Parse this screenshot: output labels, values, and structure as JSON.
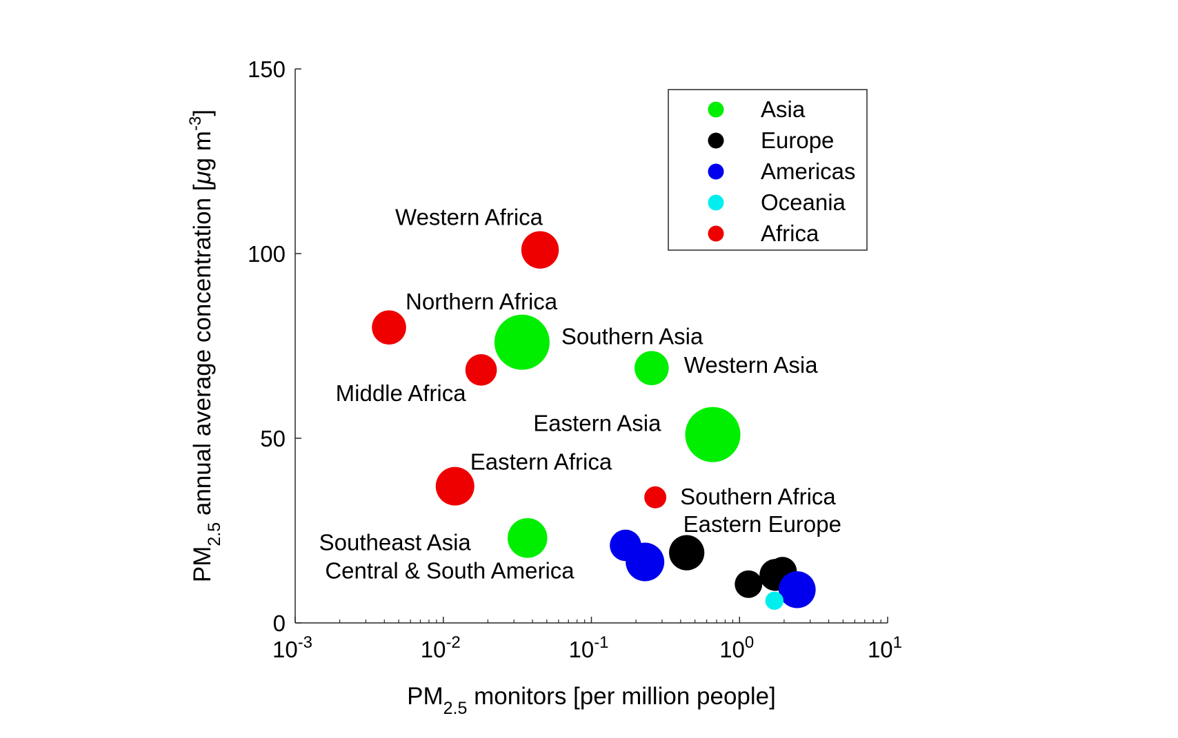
{
  "chart_data": {
    "type": "scatter",
    "title": "",
    "xlabel": {
      "main": "PM",
      "sub": "2.5",
      "rest": " monitors [per million people]"
    },
    "ylabel": {
      "main": "PM",
      "sub": "2.5",
      "rest": " annual average concentration [",
      "mu": "μ",
      "unit": "g m",
      "sup": "-3",
      "close": "]"
    },
    "x_scale": "log",
    "xlim": [
      0.001,
      10
    ],
    "ylim": [
      0,
      150
    ],
    "x_ticks": [
      {
        "value": 0.001,
        "base": "10",
        "exp": "-3"
      },
      {
        "value": 0.01,
        "base": "10",
        "exp": "-2"
      },
      {
        "value": 0.1,
        "base": "10",
        "exp": "-1"
      },
      {
        "value": 1,
        "base": "10",
        "exp": "0"
      },
      {
        "value": 10,
        "base": "10",
        "exp": "1"
      }
    ],
    "y_ticks": [
      {
        "value": 0,
        "label": "0"
      },
      {
        "value": 50,
        "label": "50"
      },
      {
        "value": 100,
        "label": "100"
      },
      {
        "value": 150,
        "label": "150"
      }
    ],
    "grid": false,
    "legend_position": "top-right",
    "series": [
      {
        "name": "Asia",
        "color": "#00ee00",
        "points": [
          {
            "label": "Southern Asia",
            "x": 0.034,
            "y": 76,
            "size": 1.0
          },
          {
            "label": "Western Asia",
            "x": 0.255,
            "y": 69,
            "size": 0.62
          },
          {
            "label": "Eastern Asia",
            "x": 0.66,
            "y": 51,
            "size": 1.0
          },
          {
            "label": "Southeast Asia",
            "x": 0.037,
            "y": 23,
            "size": 0.72
          }
        ]
      },
      {
        "name": "Europe",
        "color": "#000000",
        "points": [
          {
            "label": "Eastern Europe",
            "x": 0.44,
            "y": 19,
            "size": 0.64
          },
          {
            "label": "",
            "x": 1.15,
            "y": 10.5,
            "size": 0.5
          },
          {
            "label": "",
            "x": 1.75,
            "y": 13,
            "size": 0.58
          },
          {
            "label": "",
            "x": 1.95,
            "y": 14,
            "size": 0.52
          }
        ]
      },
      {
        "name": "Americas",
        "color": "#0000ee",
        "points": [
          {
            "label": "Central & South America",
            "x": 0.17,
            "y": 21,
            "size": 0.57
          },
          {
            "label": "",
            "x": 0.23,
            "y": 16.5,
            "size": 0.7
          },
          {
            "label": "",
            "x": 2.45,
            "y": 9,
            "size": 0.67
          }
        ]
      },
      {
        "name": "Oceania",
        "color": "#00eeee",
        "points": [
          {
            "label": "",
            "x": 1.72,
            "y": 6,
            "size": 0.33
          }
        ]
      },
      {
        "name": "Africa",
        "color": "#ee0000",
        "points": [
          {
            "label": "Western Africa",
            "x": 0.045,
            "y": 101,
            "size": 0.68
          },
          {
            "label": "Northern Africa",
            "x": 0.0043,
            "y": 80,
            "size": 0.62
          },
          {
            "label": "Middle Africa",
            "x": 0.018,
            "y": 68.5,
            "size": 0.57
          },
          {
            "label": "Eastern Africa",
            "x": 0.012,
            "y": 37,
            "size": 0.7
          },
          {
            "label": "Southern Africa",
            "x": 0.27,
            "y": 34,
            "size": 0.4
          }
        ]
      }
    ]
  }
}
